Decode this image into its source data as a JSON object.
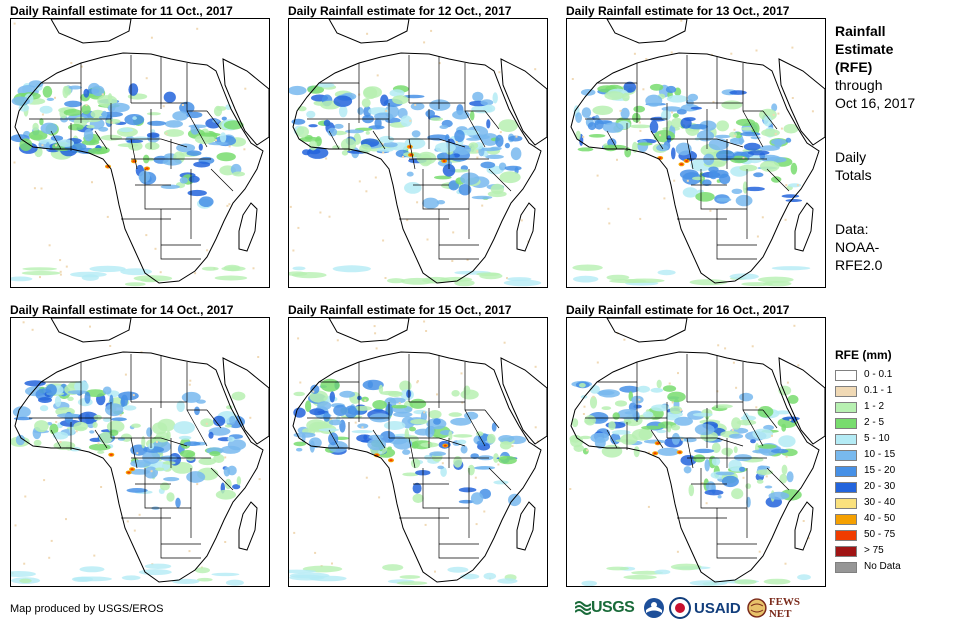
{
  "panels": [
    {
      "title": "Daily Rainfall estimate for 11 Oct., 2017",
      "seed": 11
    },
    {
      "title": "Daily Rainfall estimate for 12 Oct., 2017",
      "seed": 12
    },
    {
      "title": "Daily Rainfall estimate for 13 Oct., 2017",
      "seed": 13
    },
    {
      "title": "Daily Rainfall estimate for 14 Oct., 2017",
      "seed": 14
    },
    {
      "title": "Daily Rainfall estimate for 15 Oct., 2017",
      "seed": 15
    },
    {
      "title": "Daily Rainfall estimate for 16 Oct., 2017",
      "seed": 16
    }
  ],
  "info": {
    "line1": "Rainfall",
    "line2": "Estimate",
    "line3": "(RFE)",
    "line4": "through",
    "line5": "Oct 16, 2017",
    "line6": "Daily",
    "line7": "Totals",
    "line8": "Data:",
    "line9": "NOAA-",
    "line10": "RFE2.0"
  },
  "legend": {
    "title": "RFE (mm)",
    "items": [
      {
        "label": "0 - 0.1",
        "color": "#ffffff"
      },
      {
        "label": "0.1 - 1",
        "color": "#f0d9b5"
      },
      {
        "label": "1 - 2",
        "color": "#b7f0b1"
      },
      {
        "label": "2 - 5",
        "color": "#78dc6e"
      },
      {
        "label": "5 - 10",
        "color": "#b4ebf5"
      },
      {
        "label": "10 - 15",
        "color": "#78b9ee"
      },
      {
        "label": "15 - 20",
        "color": "#4690e6"
      },
      {
        "label": "20 - 30",
        "color": "#2364dc"
      },
      {
        "label": "30 - 40",
        "color": "#fae17d"
      },
      {
        "label": "40 - 50",
        "color": "#f5a000"
      },
      {
        "label": "50 - 75",
        "color": "#f03c00"
      },
      {
        "label": "> 75",
        "color": "#a01414"
      },
      {
        "label": "No Data",
        "color": "#969696"
      }
    ]
  },
  "credit": "Map produced by USGS/EROS",
  "logos": {
    "usgs": "USGS",
    "usaid": "USAID",
    "fews": "FEWS NET"
  }
}
